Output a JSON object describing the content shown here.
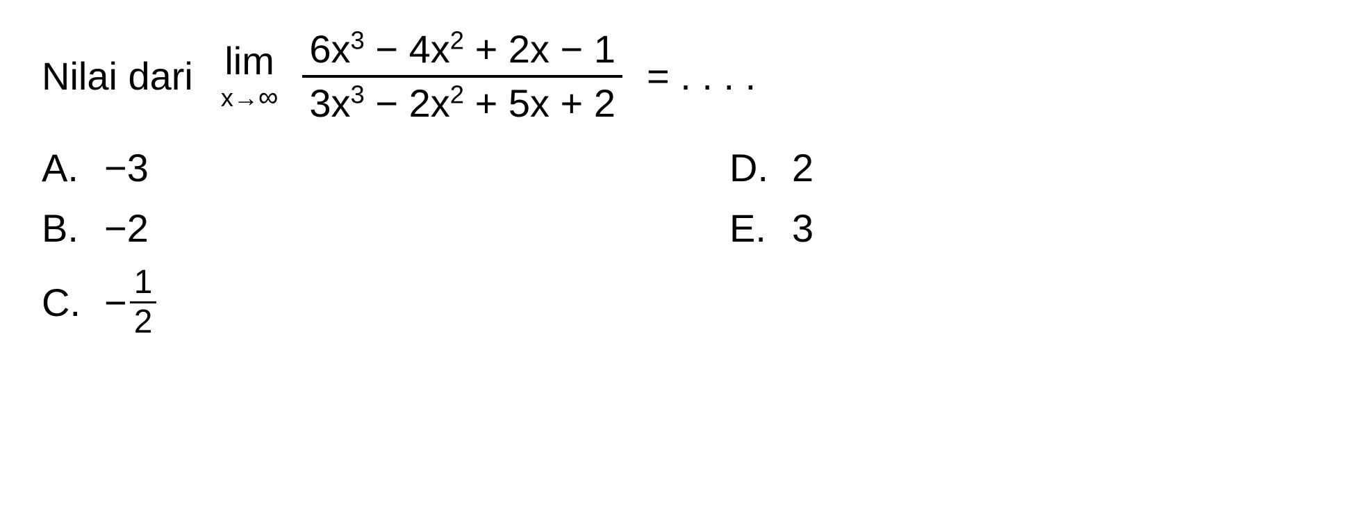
{
  "question": {
    "prompt": "Nilai dari",
    "limit_label": "lim",
    "limit_var": "x",
    "limit_arrow": "→",
    "limit_target": "∞",
    "numerator_terms": {
      "t1_coef": "6x",
      "t1_exp": "3",
      "t2_op": " − ",
      "t2_coef": "4x",
      "t2_exp": "2",
      "t3_op": " + ",
      "t3_coef": "2x",
      "t4_op": " − ",
      "t4_coef": "1"
    },
    "denominator_terms": {
      "t1_coef": "3x",
      "t1_exp": "3",
      "t2_op": " − ",
      "t2_coef": "2x",
      "t2_exp": "2",
      "t3_op": " + ",
      "t3_coef": "5x",
      "t4_op": " + ",
      "t4_coef": "2"
    },
    "equals": "=",
    "dots": " . . . ."
  },
  "answers": {
    "a": {
      "letter": "A.",
      "value": "−3"
    },
    "b": {
      "letter": "B.",
      "value": "−2"
    },
    "c": {
      "letter": "C.",
      "neg": "−",
      "num": "1",
      "den": "2"
    },
    "d": {
      "letter": "D.",
      "value": "2"
    },
    "e": {
      "letter": "E.",
      "value": "3"
    }
  },
  "style": {
    "text_color": "#000000",
    "background_color": "#ffffff",
    "base_fontsize": 56,
    "sub_fontsize": 36
  }
}
